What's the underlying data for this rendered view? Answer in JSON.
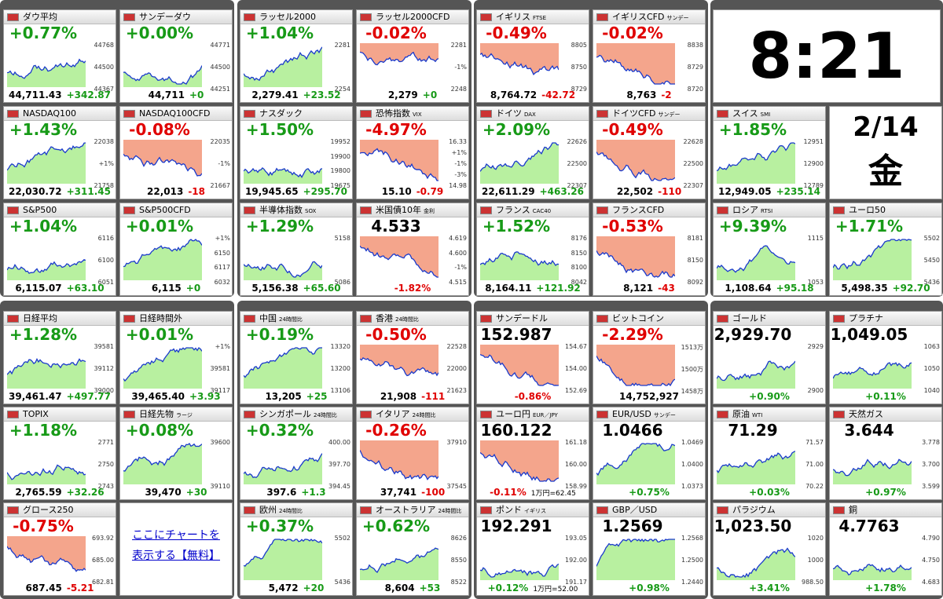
{
  "clock": {
    "time": "8:21",
    "date": "2/14",
    "weekday": "金"
  },
  "link": {
    "text": "ここにチャートを表示する【無料】"
  },
  "top_groups": [
    [
      {
        "name": "ダウ平均",
        "head": "+0.77%",
        "foot": [
          "44,711.43",
          "+342.87"
        ],
        "axis": [
          "44768",
          "44500",
          "44367"
        ]
      },
      {
        "name": "サンデーダウ",
        "head": "+0.00%",
        "foot": [
          "44,711",
          "+0"
        ],
        "axis": [
          "44771",
          "44500",
          "44251"
        ]
      },
      {
        "name": "NASDAQ100",
        "head": "+1.43%",
        "foot": [
          "22,030.72",
          "+311.45"
        ],
        "axis": [
          "22038",
          "+1%",
          "21758"
        ]
      },
      {
        "name": "NASDAQ100CFD",
        "head": "-0.08%",
        "foot": [
          "22,013",
          "-18"
        ],
        "axis": [
          "22035",
          "-1%",
          "21667"
        ]
      },
      {
        "name": "S&P500",
        "head": "+1.04%",
        "foot": [
          "6,115.07",
          "+63.10"
        ],
        "axis": [
          "6116",
          "6100",
          "6051"
        ]
      },
      {
        "name": "S&P500CFD",
        "head": "+0.01%",
        "foot": [
          "6,115",
          "+0"
        ],
        "axis": [
          "+1%",
          "6150",
          "6117",
          "6032"
        ]
      }
    ],
    [
      {
        "name": "ラッセル2000",
        "head": "+1.04%",
        "foot": [
          "2,279.41",
          "+23.52"
        ],
        "axis": [
          "2281",
          "2254"
        ]
      },
      {
        "name": "ラッセル2000CFD",
        "head": "-0.02%",
        "foot": [
          "2,279",
          "+0"
        ],
        "axis": [
          "2281",
          "-1%",
          "2248"
        ]
      },
      {
        "name": "ナスダック",
        "head": "+1.50%",
        "foot": [
          "19,945.65",
          "+295.70"
        ],
        "axis": [
          "19952",
          "19900",
          "19800",
          "19675"
        ]
      },
      {
        "name": "恐怖指数",
        "sub": "VIX",
        "head": "-4.97%",
        "foot": [
          "15.10",
          "-0.79"
        ],
        "axis": [
          "16.33",
          "+1%",
          "-1%",
          "-3%",
          "14.98"
        ]
      },
      {
        "name": "半導体指数",
        "sub": "SOX",
        "head": "+1.29%",
        "foot": [
          "5,156.38",
          "+65.60"
        ],
        "axis": [
          "5158",
          "5086"
        ]
      },
      {
        "name": "米国債10年",
        "sub": "金利",
        "head": "4.533",
        "foot": [
          "-1.82%"
        ],
        "axis": [
          "4.619",
          "4.600",
          "-1%",
          "4.515"
        ]
      }
    ],
    [
      {
        "name": "イギリス",
        "sub": "FTSE",
        "head": "-0.49%",
        "foot": [
          "8,764.72",
          "-42.72"
        ],
        "axis": [
          "8805",
          "8750",
          "8729"
        ]
      },
      {
        "name": "イギリスCFD",
        "sub": "サンデー",
        "head": "-0.02%",
        "foot": [
          "8,763",
          "-2"
        ],
        "axis": [
          "8838",
          "8729",
          "8720"
        ]
      },
      {
        "name": "ドイツ",
        "sub": "DAX",
        "head": "+2.09%",
        "foot": [
          "22,611.29",
          "+463.26"
        ],
        "axis": [
          "22626",
          "22500",
          "22307"
        ]
      },
      {
        "name": "ドイツCFD",
        "sub": "サンデー",
        "head": "-0.49%",
        "foot": [
          "22,502",
          "-110"
        ],
        "axis": [
          "22628",
          "22500",
          "22307"
        ]
      },
      {
        "name": "フランス",
        "sub": "CAC40",
        "head": "+1.52%",
        "foot": [
          "8,164.11",
          "+121.92"
        ],
        "axis": [
          "8176",
          "8150",
          "8100",
          "8042"
        ]
      },
      {
        "name": "フランスCFD",
        "head": "-0.53%",
        "foot": [
          "8,121",
          "-43"
        ],
        "axis": [
          "8181",
          "8150",
          "8092"
        ]
      }
    ],
    [
      {
        "name": "スイス",
        "sub": "SMI",
        "head": "+1.85%",
        "foot": [
          "12,949.05",
          "+235.14"
        ],
        "axis": [
          "12951",
          "12900",
          "12789"
        ]
      },
      {
        "name": "ロシア",
        "sub": "RTSI",
        "head": "+9.39%",
        "foot": [
          "1,108.64",
          "+95.18"
        ],
        "axis": [
          "1115",
          "1053"
        ]
      },
      {
        "name": "ユーロ50",
        "head": "+1.71%",
        "foot": [
          "5,498.35",
          "+92.70"
        ],
        "axis": [
          "5502",
          "5450",
          "5436"
        ]
      }
    ]
  ],
  "bottom_groups": [
    [
      {
        "name": "日経平均",
        "head": "+1.28%",
        "foot": [
          "39,461.47",
          "+497.77"
        ],
        "axis": [
          "39581",
          "39112",
          "39000"
        ]
      },
      {
        "name": "日経時間外",
        "head": "+0.01%",
        "foot": [
          "39,465.40",
          "+3.93"
        ],
        "axis": [
          "+1%",
          "39581",
          "39117"
        ]
      },
      {
        "name": "TOPIX",
        "head": "+1.18%",
        "foot": [
          "2,765.59",
          "+32.26"
        ],
        "axis": [
          "2771",
          "2750",
          "2743"
        ]
      },
      {
        "name": "日経先物",
        "sub": "ラージ",
        "head": "+0.08%",
        "foot": [
          "39,470",
          "+30"
        ],
        "axis": [
          "39600",
          "39110"
        ]
      },
      {
        "name": "グロース250",
        "head": "-0.75%",
        "foot": [
          "687.45",
          "-5.21"
        ],
        "axis": [
          "693.92",
          "685.00",
          "682.81"
        ]
      }
    ],
    [
      {
        "name": "中国",
        "sub": "24時間比",
        "head": "+0.19%",
        "foot": [
          "13,205",
          "+25"
        ],
        "axis": [
          "13320",
          "13200",
          "13106"
        ]
      },
      {
        "name": "香港",
        "sub": "24時間比",
        "head": "-0.50%",
        "foot": [
          "21,908",
          "-111"
        ],
        "axis": [
          "22528",
          "22000",
          "21623"
        ]
      },
      {
        "name": "シンガポール",
        "sub": "24時間比",
        "head": "+0.32%",
        "foot": [
          "397.6",
          "+1.3"
        ],
        "axis": [
          "400.00",
          "397.70",
          "394.45"
        ]
      },
      {
        "name": "イタリア",
        "sub": "24時間比",
        "head": "-0.26%",
        "foot": [
          "37,741",
          "-100"
        ],
        "axis": [
          "37910",
          "37545"
        ]
      },
      {
        "name": "欧州",
        "sub": "24時間比",
        "head": "+0.37%",
        "foot": [
          "5,472",
          "+20"
        ],
        "axis": [
          "5502",
          "5436"
        ]
      },
      {
        "name": "オーストラリア",
        "sub": "24時間比",
        "head": "+0.62%",
        "foot": [
          "8,604",
          "+53"
        ],
        "axis": [
          "8626",
          "8550",
          "8522"
        ]
      }
    ],
    [
      {
        "name": "サンデードル",
        "head": "152.987",
        "foot": [
          "-0.86%"
        ],
        "axis": [
          "154.67",
          "154.00",
          "152.69"
        ]
      },
      {
        "name": "ビットコイン",
        "head": "-2.29%",
        "foot": [
          "14,752,927"
        ],
        "axis": [
          "1513万",
          "1500万",
          "1458万"
        ]
      },
      {
        "name": "ユーロ円",
        "sub": "EUR／JPY",
        "head": "160.122",
        "foot": [
          "-0.11%",
          "1万円=62.45"
        ],
        "axis": [
          "161.18",
          "160.00",
          "158.99"
        ]
      },
      {
        "name": "EUR/USD",
        "sub": "サンデー",
        "head": "1.0466",
        "foot": [
          "+0.75%"
        ],
        "axis": [
          "1.0469",
          "1.0400",
          "1.0373"
        ]
      },
      {
        "name": "ポンド",
        "sub": "イギリス",
        "head": "192.291",
        "foot": [
          "+0.12%",
          "1万円=52.00"
        ],
        "axis": [
          "193.05",
          "192.00",
          "191.17"
        ]
      },
      {
        "name": "GBP／USD",
        "head": "1.2569",
        "foot": [
          "+0.98%"
        ],
        "axis": [
          "1.2568",
          "1.2500",
          "1.2440"
        ]
      }
    ],
    [
      {
        "name": "ゴールド",
        "head": "2,929.70",
        "foot": [
          "+0.90%"
        ],
        "axis": [
          "2929",
          "2900"
        ]
      },
      {
        "name": "プラチナ",
        "head": "1,049.05",
        "foot": [
          "+0.11%"
        ],
        "axis": [
          "1063",
          "1050",
          "1040"
        ]
      },
      {
        "name": "原油",
        "sub": "WTI",
        "head": "71.29",
        "foot": [
          "+0.03%"
        ],
        "axis": [
          "71.57",
          "71.00",
          "70.22"
        ]
      },
      {
        "name": "天然ガス",
        "head": "3.644",
        "foot": [
          "+0.97%"
        ],
        "axis": [
          "3.778",
          "3.700",
          "3.599"
        ]
      },
      {
        "name": "パラジウム",
        "head": "1,023.50",
        "foot": [
          "+3.41%"
        ],
        "axis": [
          "1020",
          "1000",
          "988.50"
        ]
      },
      {
        "name": "銅",
        "head": "4.7763",
        "foot": [
          "+1.78%"
        ],
        "axis": [
          "4.790",
          "4.750",
          "4.683"
        ]
      }
    ]
  ]
}
